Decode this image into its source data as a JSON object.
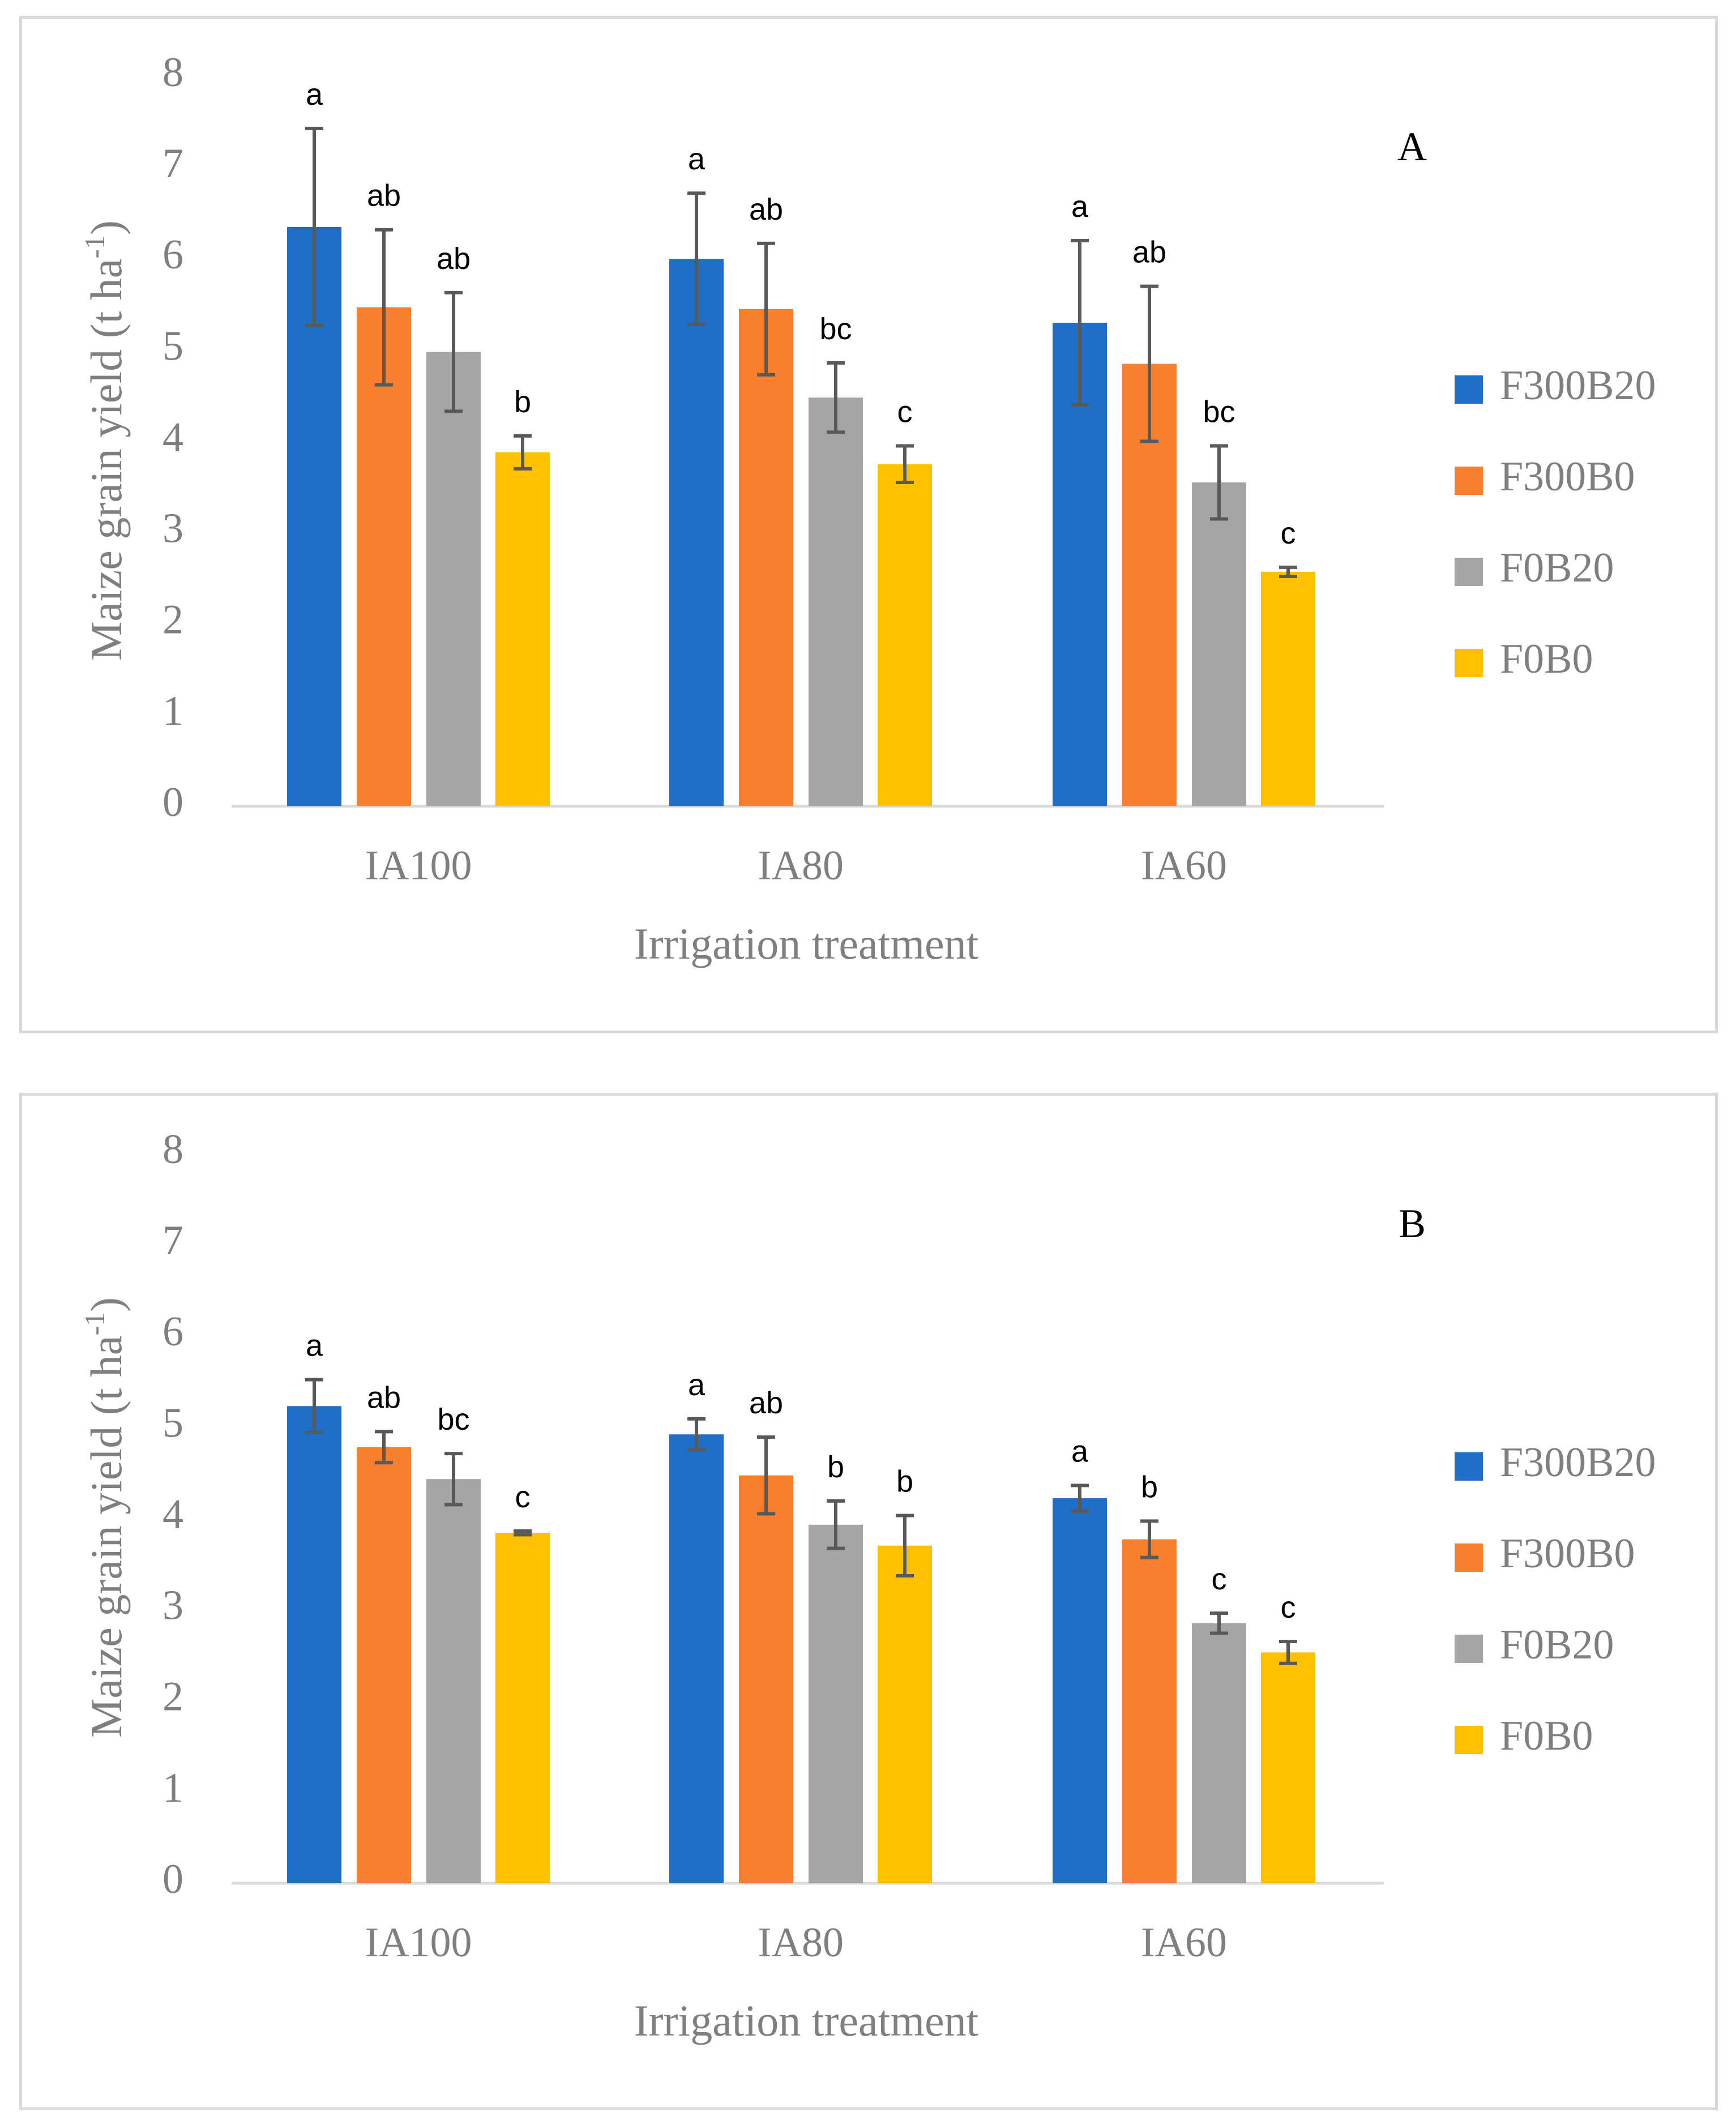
{
  "chart_data": [
    {
      "type": "bar",
      "panel_label": "A",
      "categories": [
        "IA100",
        "IA80",
        "IA60"
      ],
      "xlabel": "Irrigation treatment",
      "ylabel_main": "Maize grain yield (t ha",
      "ylabel_sup": "-1",
      "ylabel_end": ")",
      "ylim": [
        0,
        8
      ],
      "yticks": [
        "0",
        "1",
        "2",
        "3",
        "4",
        "5",
        "6",
        "7",
        "8"
      ],
      "grid": false,
      "legend_position": "right",
      "series": [
        {
          "name": "F300B20",
          "color": "#1f6fc6",
          "values": [
            6.35,
            6.0,
            5.3
          ],
          "errors": [
            1.08,
            0.72,
            0.9
          ],
          "letters": [
            "a",
            "a",
            "a"
          ]
        },
        {
          "name": "F300B0",
          "color": "#f77f2e",
          "values": [
            5.47,
            5.45,
            4.85
          ],
          "errors": [
            0.85,
            0.72,
            0.85
          ],
          "letters": [
            "ab",
            "ab",
            "ab"
          ]
        },
        {
          "name": "F0B20",
          "color": "#a5a5a5",
          "values": [
            4.98,
            4.48,
            3.55
          ],
          "errors": [
            0.65,
            0.38,
            0.4
          ],
          "letters": [
            "ab",
            "bc",
            "bc"
          ]
        },
        {
          "name": "F0B0",
          "color": "#ffc000",
          "values": [
            3.88,
            3.75,
            2.57
          ],
          "errors": [
            0.18,
            0.2,
            0.05
          ],
          "letters": [
            "b",
            "c",
            "c"
          ]
        }
      ]
    },
    {
      "type": "bar",
      "panel_label": "B",
      "categories": [
        "IA100",
        "IA80",
        "IA60"
      ],
      "xlabel": "Irrigation treatment",
      "ylabel_main": "Maize grain yield (t ha",
      "ylabel_sup": "-1",
      "ylabel_end": ")",
      "ylim": [
        0,
        8
      ],
      "yticks": [
        "0",
        "1",
        "2",
        "3",
        "4",
        "5",
        "6",
        "7",
        "8"
      ],
      "grid": false,
      "legend_position": "right",
      "series": [
        {
          "name": "F300B20",
          "color": "#1f6fc6",
          "values": [
            5.23,
            4.92,
            4.22
          ],
          "errors": [
            0.29,
            0.17,
            0.14
          ],
          "letters": [
            "a",
            "a",
            "a"
          ]
        },
        {
          "name": "F300B0",
          "color": "#f77f2e",
          "values": [
            4.78,
            4.47,
            3.77
          ],
          "errors": [
            0.17,
            0.42,
            0.2
          ],
          "letters": [
            "ab",
            "ab",
            "b"
          ]
        },
        {
          "name": "F0B20",
          "color": "#a5a5a5",
          "values": [
            4.43,
            3.93,
            2.85
          ],
          "errors": [
            0.28,
            0.26,
            0.11
          ],
          "letters": [
            "bc",
            "b",
            "c"
          ]
        },
        {
          "name": "F0B0",
          "color": "#ffc000",
          "values": [
            3.84,
            3.7,
            2.53
          ],
          "errors": [
            0.02,
            0.33,
            0.12
          ],
          "letters": [
            "c",
            "b",
            "c"
          ]
        }
      ]
    }
  ]
}
